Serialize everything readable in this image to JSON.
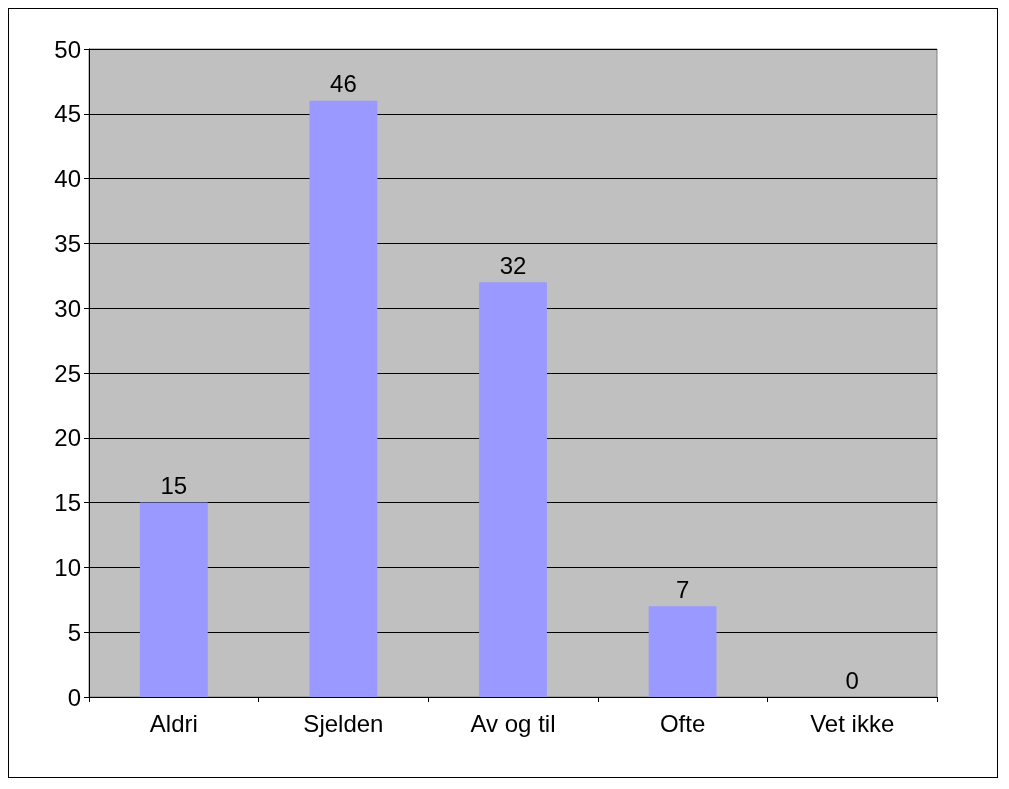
{
  "chart_data": {
    "type": "bar",
    "categories": [
      "Aldri",
      "Sjelden",
      "Av og til",
      "Ofte",
      "Vet ikke"
    ],
    "values": [
      15,
      46,
      32,
      7,
      0
    ],
    "color": "#9999ff",
    "ylim": [
      0,
      50
    ],
    "yticks": [
      0,
      5,
      10,
      15,
      20,
      25,
      30,
      35,
      40,
      45,
      50
    ],
    "grid": "y",
    "data_labels": true
  }
}
